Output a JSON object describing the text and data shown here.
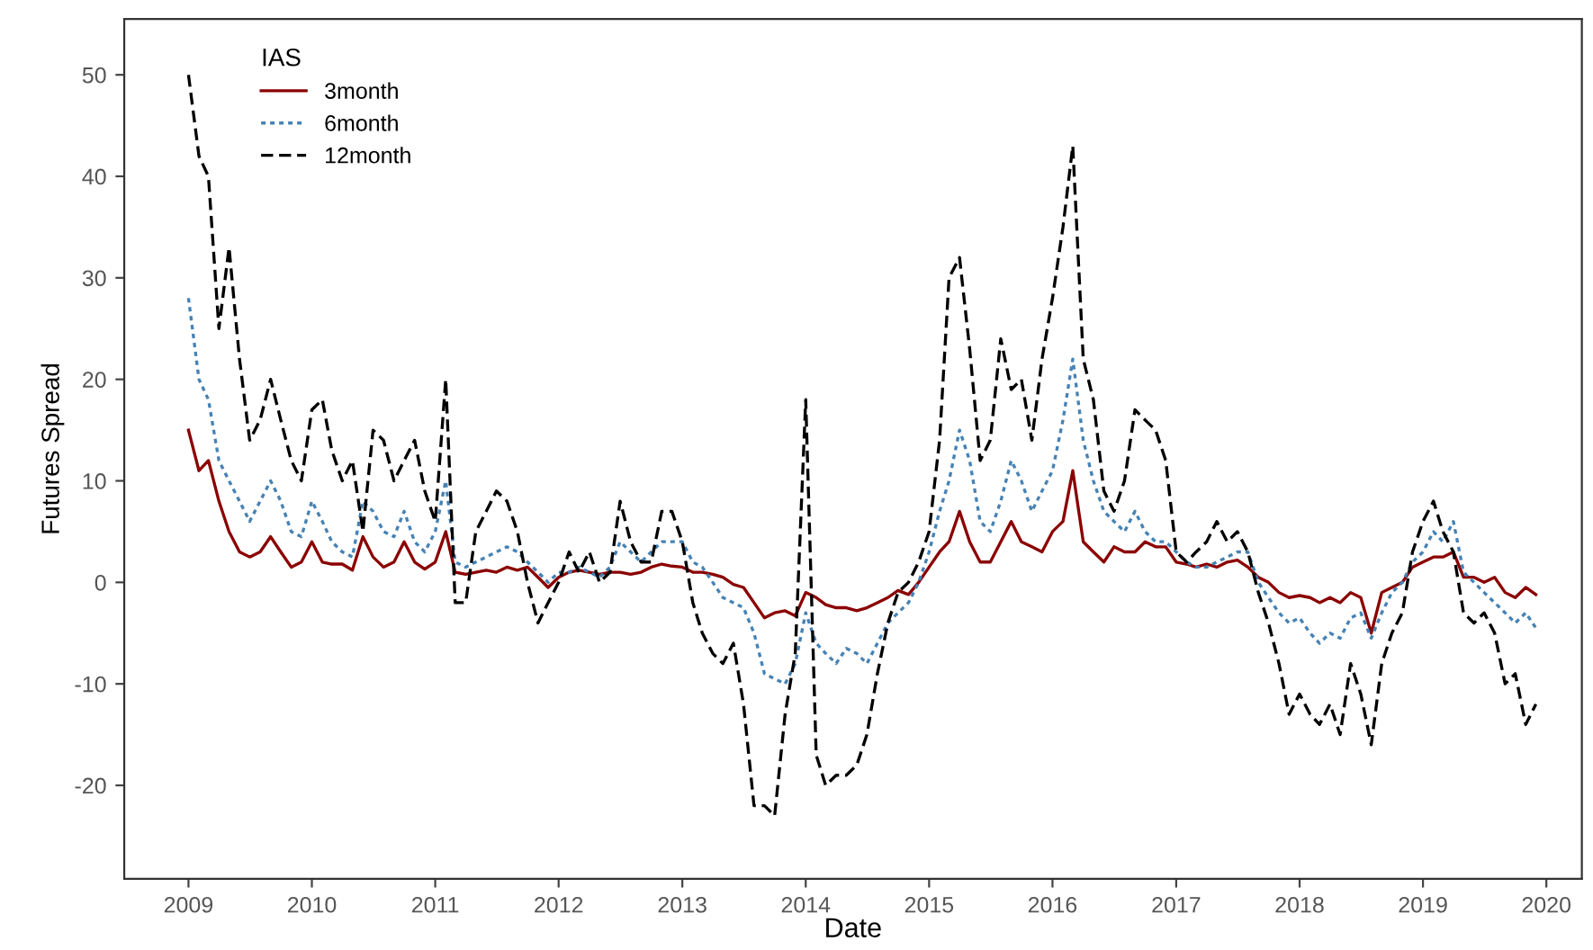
{
  "chart_data": {
    "type": "line",
    "xlabel": "Date",
    "ylabel": "Futures Spread",
    "legend_title": "IAS",
    "legend": "top left",
    "grid": false,
    "x": [
      "2009-01",
      "2009-02",
      "2009-03",
      "2009-04",
      "2009-05",
      "2009-06",
      "2009-07",
      "2009-08",
      "2009-09",
      "2009-10",
      "2009-11",
      "2009-12",
      "2010-01",
      "2010-02",
      "2010-03",
      "2010-04",
      "2010-05",
      "2010-06",
      "2010-07",
      "2010-08",
      "2010-09",
      "2010-10",
      "2010-11",
      "2010-12",
      "2011-01",
      "2011-02",
      "2011-03",
      "2011-04",
      "2011-05",
      "2011-06",
      "2011-07",
      "2011-08",
      "2011-09",
      "2011-10",
      "2011-11",
      "2011-12",
      "2012-01",
      "2012-02",
      "2012-03",
      "2012-04",
      "2012-05",
      "2012-06",
      "2012-07",
      "2012-08",
      "2012-09",
      "2012-10",
      "2012-11",
      "2012-12",
      "2013-01",
      "2013-02",
      "2013-03",
      "2013-04",
      "2013-05",
      "2013-06",
      "2013-07",
      "2013-08",
      "2013-09",
      "2013-10",
      "2013-11",
      "2013-12",
      "2014-01",
      "2014-02",
      "2014-03",
      "2014-04",
      "2014-05",
      "2014-06",
      "2014-07",
      "2014-08",
      "2014-09",
      "2014-10",
      "2014-11",
      "2014-12",
      "2015-01",
      "2015-02",
      "2015-03",
      "2015-04",
      "2015-05",
      "2015-06",
      "2015-07",
      "2015-08",
      "2015-09",
      "2015-10",
      "2015-11",
      "2015-12",
      "2016-01",
      "2016-02",
      "2016-03",
      "2016-04",
      "2016-05",
      "2016-06",
      "2016-07",
      "2016-08",
      "2016-09",
      "2016-10",
      "2016-11",
      "2016-12",
      "2017-01",
      "2017-02",
      "2017-03",
      "2017-04",
      "2017-05",
      "2017-06",
      "2017-07",
      "2017-08",
      "2017-09",
      "2017-10",
      "2017-11",
      "2017-12",
      "2018-01",
      "2018-02",
      "2018-03",
      "2018-04",
      "2018-05",
      "2018-06",
      "2018-07",
      "2018-08",
      "2018-09",
      "2018-10",
      "2018-11",
      "2018-12",
      "2019-01",
      "2019-02",
      "2019-03",
      "2019-04",
      "2019-05",
      "2019-06",
      "2019-07",
      "2019-08",
      "2019-09",
      "2019-10",
      "2019-11",
      "2019-12"
    ],
    "series": [
      {
        "name": "3month",
        "color": "#8b0000",
        "line_style": "solid",
        "values": [
          15,
          11,
          12,
          8,
          5,
          3,
          2.5,
          3,
          4.5,
          3,
          1.5,
          2,
          4,
          2,
          1.8,
          1.8,
          1.2,
          4.5,
          2.5,
          1.5,
          2,
          4,
          2,
          1.3,
          2,
          5,
          1,
          0.8,
          1,
          1.2,
          1,
          1.5,
          1.2,
          1.5,
          0.5,
          -0.5,
          0.5,
          1,
          1.2,
          1,
          0.8,
          1,
          1,
          0.8,
          1,
          1.5,
          1.8,
          1.6,
          1.5,
          1,
          1,
          0.8,
          0.5,
          -0.2,
          -0.5,
          -2,
          -3.5,
          -3,
          -2.8,
          -3.3,
          -1,
          -1.5,
          -2.2,
          -2.5,
          -2.5,
          -2.8,
          -2.5,
          -2,
          -1.5,
          -0.8,
          -1.2,
          0,
          1.5,
          3,
          4,
          7,
          4,
          2,
          2,
          4,
          6,
          4,
          3.5,
          3,
          5,
          6,
          11,
          4,
          3,
          2,
          3.5,
          3,
          3,
          4,
          3.5,
          3.5,
          2,
          1.8,
          1.5,
          1.8,
          1.5,
          2,
          2.2,
          1.5,
          0.5,
          0,
          -1,
          -1.5,
          -1.3,
          -1.5,
          -2,
          -1.5,
          -2,
          -1,
          -1.5,
          -5,
          -1,
          -0.5,
          0,
          1.5,
          2,
          2.5,
          2.5,
          3,
          0.5,
          0.5,
          0,
          0.5,
          -1,
          -1.5,
          -0.5,
          -1.2
        ]
      },
      {
        "name": "6month",
        "color": "#4682b4",
        "line_style": "dotted",
        "values": [
          28,
          20,
          18,
          12,
          10,
          8,
          6,
          8,
          10,
          8,
          5,
          4.5,
          8,
          6,
          4,
          3,
          2.5,
          8,
          7,
          5,
          4.5,
          7,
          4,
          3,
          5,
          10,
          2,
          1.5,
          2,
          2.5,
          3,
          3.5,
          3,
          2,
          1,
          0,
          1,
          1,
          1.5,
          1,
          0.5,
          1.5,
          4,
          3,
          2,
          3,
          4,
          4,
          4,
          2,
          1.5,
          0,
          -1.5,
          -2,
          -2.5,
          -5,
          -9,
          -9.5,
          -10,
          -8,
          -3,
          -6,
          -7,
          -8,
          -6.5,
          -7,
          -8,
          -6,
          -4,
          -3,
          -2,
          0,
          3,
          7,
          10,
          15,
          12,
          6,
          5,
          8,
          12,
          10,
          7,
          9,
          11,
          16,
          22,
          14,
          10,
          7,
          6,
          5,
          7,
          5,
          4,
          4,
          3,
          2,
          1.5,
          1.5,
          2,
          2.5,
          3,
          3,
          0,
          -1.5,
          -3,
          -4,
          -3.5,
          -5,
          -6,
          -5,
          -5.5,
          -3.5,
          -3,
          -5.5,
          -3,
          -1,
          0,
          2,
          3,
          5,
          4,
          6,
          1,
          0,
          -1,
          -2,
          -3,
          -4,
          -3,
          -4.5
        ]
      },
      {
        "name": "12month",
        "color": "#000000",
        "line_style": "dashed",
        "values": [
          50,
          42,
          40,
          25,
          33,
          22,
          14,
          16,
          20,
          16,
          12,
          10,
          17,
          18,
          13,
          10,
          12,
          5,
          15,
          14,
          10,
          12,
          14,
          9,
          6,
          20,
          -2,
          -2,
          5,
          7,
          9,
          8,
          5,
          0,
          -4,
          -2,
          0,
          3,
          1,
          3,
          0,
          1,
          8,
          4,
          2,
          2,
          7,
          7,
          4,
          -2,
          -5,
          -7,
          -8,
          -6,
          -12,
          -22,
          -22,
          -23,
          -13,
          -7,
          18,
          -17,
          -20,
          -19,
          -19,
          -18,
          -15,
          -9,
          -4,
          -1,
          0,
          2,
          5,
          14,
          30,
          32,
          23,
          12,
          14,
          24,
          19,
          20,
          14,
          22,
          28,
          35,
          43,
          22,
          18,
          9,
          7,
          10,
          17,
          16,
          15,
          12,
          3,
          2,
          3,
          4,
          6,
          4,
          5,
          3,
          -1,
          -4,
          -8,
          -13,
          -11,
          -13,
          -14,
          -12,
          -15,
          -8,
          -11,
          -16,
          -8,
          -5,
          -3,
          3,
          6,
          8,
          5,
          3,
          -3,
          -4,
          -3,
          -5,
          -10,
          -9,
          -14,
          -12
        ]
      }
    ],
    "xlim": [
      "2008-06-25",
      "2020-04-15"
    ],
    "xticks": [
      {
        "value": "2009-01-01",
        "label": "2009"
      },
      {
        "value": "2010-01-01",
        "label": "2010"
      },
      {
        "value": "2011-01-01",
        "label": "2011"
      },
      {
        "value": "2012-01-01",
        "label": "2012"
      },
      {
        "value": "2013-01-01",
        "label": "2013"
      },
      {
        "value": "2014-01-01",
        "label": "2014"
      },
      {
        "value": "2015-01-01",
        "label": "2015"
      },
      {
        "value": "2016-01-01",
        "label": "2016"
      },
      {
        "value": "2017-01-01",
        "label": "2017"
      },
      {
        "value": "2018-01-01",
        "label": "2018"
      },
      {
        "value": "2019-01-01",
        "label": "2019"
      },
      {
        "value": "2020-01-01",
        "label": "2020"
      }
    ],
    "ylim": [
      -29.2,
      55.5
    ],
    "yticks": [
      -20,
      -10,
      0,
      10,
      20,
      30,
      40,
      50
    ]
  }
}
